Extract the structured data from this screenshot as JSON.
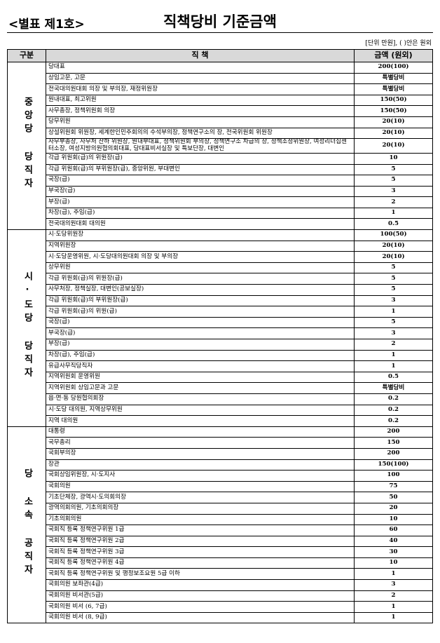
{
  "header": {
    "label": "<별표 제1호>",
    "title": "직책당비 기준금액",
    "unit_note": "[단위 만원], ( )안은 원외"
  },
  "table": {
    "columns": [
      "구분",
      "직 책",
      "금액 (원외)"
    ],
    "groups": [
      {
        "label": "중앙당 당직자",
        "rows": [
          [
            "당대표",
            "200(100)"
          ],
          [
            "상임고문, 고문",
            "특별당비"
          ],
          [
            "전국대의원대회 의장 및 부의장, 재정위원장",
            "특별당비"
          ],
          [
            "원내대표, 최고위원",
            "150(50)"
          ],
          [
            "사무총장, 정책위원회 의장",
            "150(50)"
          ],
          [
            "당무위원",
            "20(10)"
          ],
          [
            "상설위원회 위원장, 세계한인민주회의의 수석부의장, 정책연구소의 장, 전국위원회 위원장",
            "20(10)"
          ],
          [
            "사무부총장, 사무처 산하 위원장, 원내부대표, 정책위원회 부의장, 정책연구소 차급의 장, 정책조정위원장, 여성리더십센터소장, 여성지방의원협의회대표, 당대표비서실장 및 특보단장, 대변인",
            "20(10)"
          ],
          [
            "각급 위원회(급)의 위원장(급)",
            "10"
          ],
          [
            "각급 위원회(급)의 부위원장(급), 중앙위원, 부대변인",
            "5"
          ],
          [
            "국장(급)",
            "5"
          ],
          [
            "부국장(급)",
            "3"
          ],
          [
            "부장(급)",
            "2"
          ],
          [
            "차장(급), 주임(급)",
            "1"
          ],
          [
            "전국대의원대회 대의원",
            "0.5"
          ]
        ]
      },
      {
        "label": "시·도당 당직자",
        "rows": [
          [
            "시·도당위원장",
            "100(50)"
          ],
          [
            "지역위원장",
            "20(10)"
          ],
          [
            "시·도당운영위원, 시·도당대의원대회 의장 및 부의장",
            "20(10)"
          ],
          [
            "상무위원",
            "5"
          ],
          [
            "각급 위원회(급)의 위원장(급)",
            "5"
          ],
          [
            "사무처장, 정책실장, 대변인(공보실장)",
            "5"
          ],
          [
            "각급 위원회(급)의 부위원장(급)",
            "3"
          ],
          [
            "각급 위원회(급)의 위원(급)",
            "1"
          ],
          [
            "국장(급)",
            "5"
          ],
          [
            "부국장(급)",
            "3"
          ],
          [
            "부장(급)",
            "2"
          ],
          [
            "차장(급), 주임(급)",
            "1"
          ],
          [
            "유급사무직당직자",
            "1"
          ],
          [
            "지역위원회 운영위원",
            "0.5"
          ],
          [
            "지역위원회 상임고문과 고문",
            "특별당비"
          ],
          [
            "읍·면·동 당원협의회장",
            "0.2"
          ],
          [
            "시·도당 대의원, 지역상무위원",
            "0.2"
          ],
          [
            "지역 대의원",
            "0.2"
          ]
        ]
      },
      {
        "label": "당 소속 공직자",
        "rows": [
          [
            "대통령",
            "200"
          ],
          [
            "국무총리",
            "150"
          ],
          [
            "국회부의장",
            "200"
          ],
          [
            "장관",
            "150(100)"
          ],
          [
            "국회상임위원장, 시·도지사",
            "100"
          ],
          [
            "국회의원",
            "75"
          ],
          [
            "기초단체장, 광역시·도의회의장",
            "50"
          ],
          [
            "광역의회의원, 기초의회의장",
            "20"
          ],
          [
            "기초의회의원",
            "10"
          ],
          [
            "국회직 등록 정책연구위원 1급",
            "60"
          ],
          [
            "국회직 등록 정책연구위원 2급",
            "40"
          ],
          [
            "국회직 등록 정책연구위원 3급",
            "30"
          ],
          [
            "국회직 등록 정책연구위원 4급",
            "10"
          ],
          [
            "국회직 등록 정책연구위원 및 행정보조요원 5급 이하",
            "1"
          ],
          [
            "국회의원 보좌관(4급)",
            "3"
          ],
          [
            "국회의원 비서관(5급)",
            "2"
          ],
          [
            "국회의원 비서 (6, 7급)",
            "1"
          ],
          [
            "국회의원 비서 (8, 9급)",
            "1"
          ]
        ]
      }
    ]
  }
}
